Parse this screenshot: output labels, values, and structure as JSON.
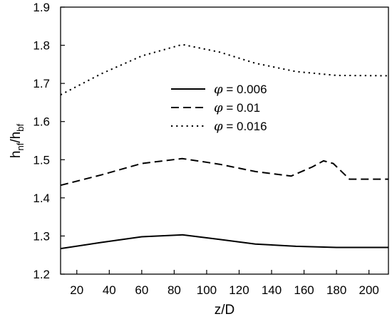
{
  "chart_data": {
    "type": "line",
    "title": "",
    "xlabel": "z/D",
    "ylabel": {
      "base": "h",
      "sub1": "nf",
      "mid": "/h",
      "sub2": "bf"
    },
    "xlim": [
      10,
      212
    ],
    "ylim": [
      1.2,
      1.9
    ],
    "xticks": [
      20,
      40,
      60,
      80,
      100,
      120,
      140,
      160,
      180,
      200
    ],
    "yticks": [
      1.2,
      1.3,
      1.4,
      1.5,
      1.6,
      1.7,
      1.8,
      1.9
    ],
    "grid": false,
    "legend_position": "center",
    "series": [
      {
        "name": "φ = 0.006",
        "symbol": "φ",
        "label_value": " = 0.006",
        "style": "solid",
        "x": [
          10,
          35,
          60,
          85,
          108,
          130,
          155,
          180,
          212
        ],
        "y": [
          1.267,
          1.283,
          1.298,
          1.303,
          1.291,
          1.279,
          1.273,
          1.27,
          1.27
        ]
      },
      {
        "name": "φ = 0.01",
        "symbol": "φ",
        "label_value": " = 0.01",
        "style": "dashed",
        "x": [
          10,
          35,
          60,
          85,
          108,
          130,
          152,
          165,
          172,
          178,
          188,
          212
        ],
        "y": [
          1.433,
          1.46,
          1.49,
          1.503,
          1.488,
          1.469,
          1.457,
          1.481,
          1.497,
          1.49,
          1.449,
          1.449
        ]
      },
      {
        "name": "φ = 0.016",
        "symbol": "φ",
        "label_value": " = 0.016",
        "style": "dotted",
        "x": [
          10,
          35,
          60,
          85,
          108,
          130,
          155,
          180,
          212
        ],
        "y": [
          1.67,
          1.725,
          1.772,
          1.802,
          1.782,
          1.753,
          1.731,
          1.721,
          1.72
        ]
      }
    ],
    "colors": {
      "line": "#000000",
      "background": "#ffffff"
    }
  }
}
